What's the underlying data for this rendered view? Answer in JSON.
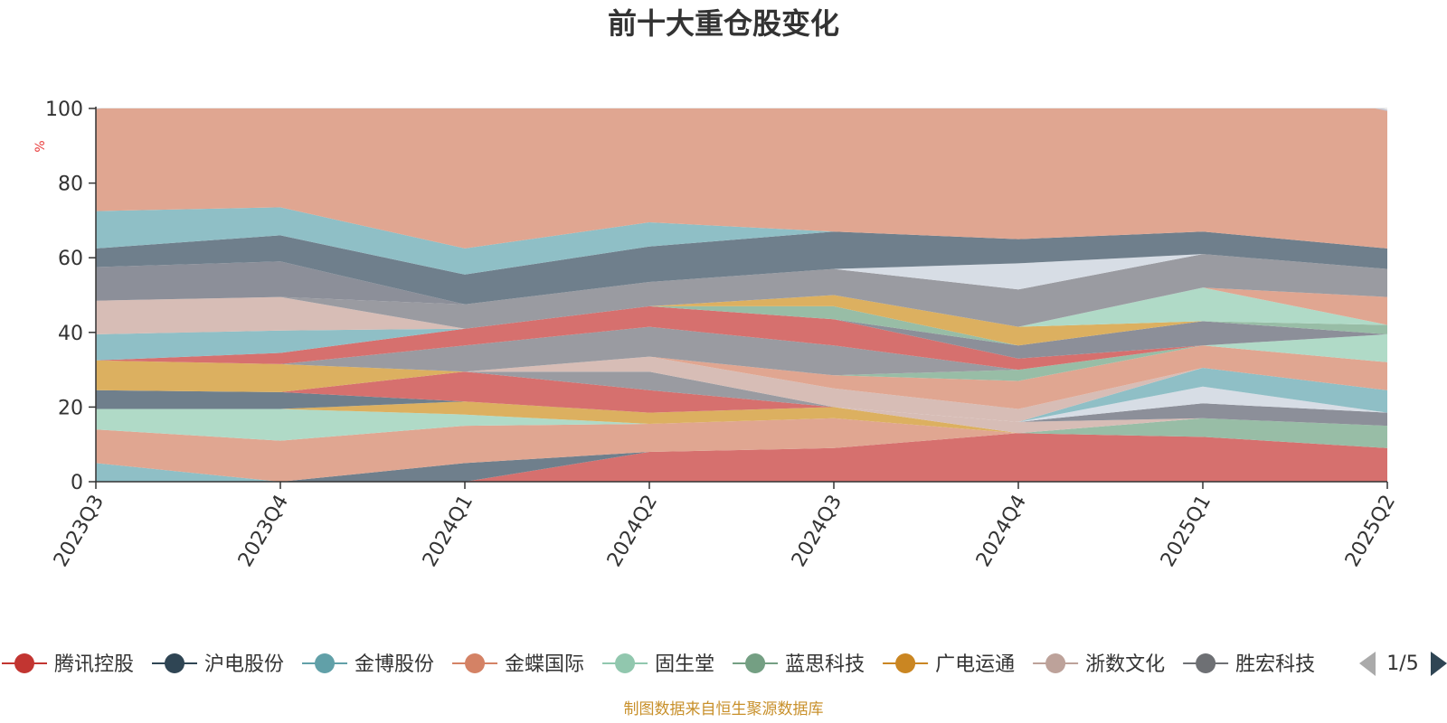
{
  "chart_data": {
    "type": "area",
    "title": "前十大重仓股变化",
    "y_unit": "%",
    "ylim": [
      0,
      100
    ],
    "y_ticks": [
      0,
      20,
      40,
      60,
      80,
      100
    ],
    "grid": true,
    "stacked": true,
    "x": [
      "2023Q3",
      "2023Q4",
      "2024Q1",
      "2024Q2",
      "2024Q3",
      "2024Q4",
      "2025Q1",
      "2025Q2"
    ],
    "series": [
      {
        "name": "腾讯控股",
        "color": "#d6706e",
        "values": [
          0,
          0,
          0,
          8,
          9,
          13,
          12,
          9
        ]
      },
      {
        "name": "沪电股份",
        "color": "#6f7f8c",
        "values": [
          0,
          0,
          5,
          0,
          0,
          0,
          0,
          0
        ]
      },
      {
        "name": "金博股份",
        "color": "#8fbfc6",
        "values": [
          5,
          0,
          0,
          0,
          0,
          0,
          0,
          0
        ]
      },
      {
        "name": "金蝶国际",
        "color": "#e0a691",
        "values": [
          9,
          11,
          10,
          7.5,
          8,
          0,
          0,
          0
        ]
      },
      {
        "name": "固生堂",
        "color": "#b0dac7",
        "values": [
          5.5,
          8.5,
          3,
          0,
          0,
          0,
          0,
          0
        ]
      },
      {
        "name": "蓝思科技",
        "color": "#98bda6",
        "values": [
          0,
          0,
          0,
          0,
          0,
          0,
          5,
          6
        ]
      },
      {
        "name": "广电运通",
        "color": "#dcb060",
        "values": [
          0,
          0,
          3.5,
          3,
          3,
          0,
          0,
          0
        ]
      },
      {
        "name": "浙数文化",
        "color": "#d7bdb6",
        "values": [
          0,
          0,
          0,
          0,
          0,
          3,
          0,
          0
        ]
      },
      {
        "name": "胜宏科技",
        "color": "#8c8f99",
        "values": [
          0,
          0,
          0,
          0,
          0,
          0,
          4,
          3.5
        ]
      },
      {
        "name": "",
        "color": "#d7dde5",
        "values": [
          0,
          0,
          0,
          0,
          0,
          0,
          4.5,
          0
        ]
      },
      {
        "name": "",
        "color": "#6f7f8c",
        "values": [
          5,
          4.5,
          0,
          0,
          0,
          0,
          0,
          0
        ]
      },
      {
        "name": "",
        "color": "#d6706e",
        "values": [
          0,
          0,
          8,
          6,
          0,
          0,
          0,
          0
        ]
      },
      {
        "name": "",
        "color": "#8fbfc6",
        "values": [
          0,
          0,
          0,
          0,
          0,
          0,
          5,
          6
        ]
      },
      {
        "name": "",
        "color": "#9a9ba1",
        "values": [
          0,
          0,
          0,
          5,
          0,
          0,
          0,
          0
        ]
      },
      {
        "name": "",
        "color": "#dcb060",
        "values": [
          8,
          7.5,
          0,
          0,
          0,
          0,
          0,
          0
        ]
      },
      {
        "name": "",
        "color": "#d7bdb6",
        "values": [
          0,
          0,
          0,
          4,
          5,
          3.5,
          0,
          0
        ]
      },
      {
        "name": "",
        "color": "#e0a691",
        "values": [
          0,
          0,
          0,
          0,
          3.5,
          7.5,
          6,
          7.5
        ]
      },
      {
        "name": "",
        "color": "#98bda6",
        "values": [
          0,
          0,
          0,
          0,
          0,
          3,
          0,
          0
        ]
      },
      {
        "name": "",
        "color": "#9a9ba1",
        "values": [
          0,
          0,
          7,
          8,
          8,
          0,
          0,
          0
        ]
      },
      {
        "name": "",
        "color": "#b0dac7",
        "values": [
          0,
          0,
          0,
          0,
          0,
          0,
          0,
          7.5
        ]
      },
      {
        "name": "",
        "color": "#d6706e",
        "values": [
          0,
          3,
          4.5,
          5.5,
          7,
          3,
          0,
          0
        ]
      },
      {
        "name": "",
        "color": "#8c8f99",
        "values": [
          0,
          0,
          0,
          0,
          0,
          3.5,
          6.5,
          0
        ]
      },
      {
        "name": "",
        "color": "#98bda6",
        "values": [
          0,
          0,
          0,
          0,
          3.5,
          0,
          0,
          2.5
        ]
      },
      {
        "name": "",
        "color": "#8fbfc6",
        "values": [
          7,
          6,
          0,
          0,
          0,
          0,
          0,
          0
        ]
      },
      {
        "name": "",
        "color": "#dcb060",
        "values": [
          0,
          0,
          0,
          0,
          3,
          5,
          0,
          0
        ]
      },
      {
        "name": "",
        "color": "#b0dac7",
        "values": [
          0,
          0,
          0,
          0,
          0,
          0,
          9,
          0
        ]
      },
      {
        "name": "",
        "color": "#e0a691",
        "values": [
          0,
          0,
          0,
          0,
          0,
          0,
          0,
          7.5
        ]
      },
      {
        "name": "",
        "color": "#d7bdb6",
        "values": [
          9,
          9,
          0,
          0,
          0,
          0,
          0,
          0
        ]
      },
      {
        "name": "",
        "color": "#9a9ba1",
        "values": [
          0,
          0,
          6.5,
          6.5,
          7,
          10,
          9,
          7.5
        ]
      },
      {
        "name": "",
        "color": "#d7dde5",
        "values": [
          0,
          0,
          0,
          0,
          0,
          7,
          0,
          0
        ]
      },
      {
        "name": "",
        "color": "#8c8f99",
        "values": [
          9,
          9.5,
          0,
          0,
          0,
          0,
          0,
          0
        ]
      },
      {
        "name": "",
        "color": "#6f7f8c",
        "values": [
          5,
          7,
          8,
          9.5,
          10,
          6.5,
          6,
          5.5
        ]
      },
      {
        "name": "",
        "color": "#8fbfc6",
        "values": [
          10,
          7.5,
          7,
          6.5,
          0,
          0,
          0,
          0
        ]
      },
      {
        "name": "",
        "color": "#e0a691",
        "values": [
          27.5,
          32,
          38,
          37,
          36,
          35,
          43,
          37
        ]
      },
      {
        "name": "",
        "color": "#d7dde5",
        "values": [
          0,
          0,
          0,
          0,
          0,
          2.5,
          0,
          0
        ]
      }
    ]
  },
  "legend": {
    "items": [
      {
        "label": "腾讯控股",
        "color": "#c23531"
      },
      {
        "label": "沪电股份",
        "color": "#2f4554"
      },
      {
        "label": "金博股份",
        "color": "#61a0a8"
      },
      {
        "label": "金蝶国际",
        "color": "#d48265"
      },
      {
        "label": "固生堂",
        "color": "#91c7ae"
      },
      {
        "label": "蓝思科技",
        "color": "#749f83"
      },
      {
        "label": "广电运通",
        "color": "#ca8622"
      },
      {
        "label": "浙数文化",
        "color": "#bda29a"
      },
      {
        "label": "胜宏科技",
        "color": "#6e7074"
      }
    ],
    "page_indicator": "1/5"
  },
  "footer": "制图数据来自恒生聚源数据库"
}
